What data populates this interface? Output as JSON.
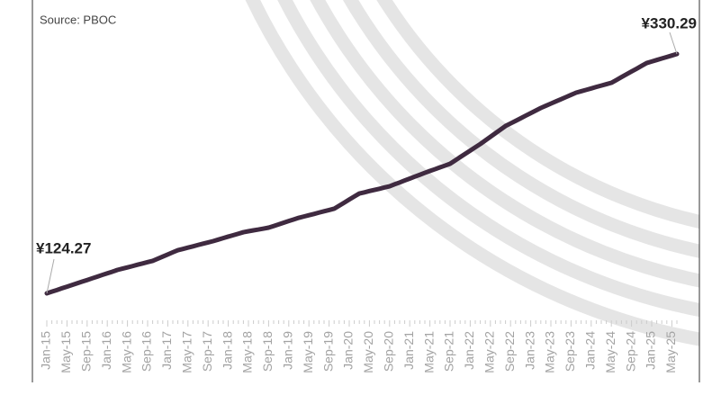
{
  "chart_data": {
    "type": "line",
    "source": "Source: PBOC",
    "categories": [
      "Jan-15",
      null,
      null,
      null,
      "May-15",
      null,
      null,
      null,
      "Sep-15",
      null,
      null,
      null,
      "Jan-16",
      null,
      null,
      null,
      "May-16",
      null,
      null,
      null,
      "Sep-16",
      null,
      null,
      null,
      "Jan-17",
      null,
      null,
      null,
      "May-17",
      null,
      null,
      null,
      "Sep-17",
      null,
      null,
      null,
      "Jan-18",
      null,
      null,
      null,
      "May-18",
      null,
      null,
      null,
      "Sep-18",
      null,
      null,
      null,
      "Jan-19",
      null,
      null,
      null,
      "May-19",
      null,
      null,
      null,
      "Sep-19",
      null,
      null,
      null,
      "Jan-20",
      null,
      null,
      null,
      "May-20",
      null,
      null,
      null,
      "Sep-20",
      null,
      null,
      null,
      "Jan-21",
      null,
      null,
      null,
      "May-21",
      null,
      null,
      null,
      "Sep-21",
      null,
      null,
      null,
      "Jan-22",
      null,
      null,
      null,
      "May-22",
      null,
      null,
      null,
      "Sep-22",
      null,
      null,
      null,
      "Jan-23",
      null,
      null,
      null,
      "May-23",
      null,
      null,
      null,
      "Sep-23",
      null,
      null,
      null,
      "Jan-24",
      null,
      null,
      null,
      "May-24",
      null,
      null,
      null,
      "Sep-24",
      null,
      null,
      null,
      "Jan-25",
      null,
      null,
      null,
      "May-25",
      null
    ],
    "series": [
      {
        "color": "#3f2a40",
        "values": [
          124.27,
          125.7,
          127.1,
          128.6,
          130.0,
          131.4,
          132.9,
          134.3,
          135.7,
          137.2,
          138.6,
          140.1,
          141.5,
          142.9,
          144.4,
          145.5,
          146.6,
          147.7,
          148.9,
          150.0,
          151.1,
          152.2,
          154.0,
          155.9,
          157.7,
          159.6,
          161.4,
          162.5,
          163.6,
          164.7,
          165.9,
          167.0,
          168.1,
          169.2,
          170.5,
          171.8,
          173.1,
          174.3,
          175.6,
          176.9,
          177.7,
          178.5,
          179.2,
          180.0,
          180.8,
          182.2,
          183.6,
          185.1,
          186.5,
          187.9,
          189.3,
          190.4,
          191.5,
          192.6,
          193.8,
          194.9,
          196.0,
          197.1,
          199.7,
          202.3,
          205.0,
          207.6,
          210.2,
          211.2,
          212.3,
          213.3,
          214.3,
          215.4,
          216.4,
          218.1,
          219.7,
          221.4,
          223.0,
          224.7,
          226.3,
          228.0,
          229.6,
          231.1,
          232.7,
          234.2,
          235.8,
          238.6,
          241.5,
          244.3,
          247.1,
          250.0,
          252.8,
          255.9,
          259.0,
          262.1,
          265.2,
          268.3,
          270.5,
          272.7,
          274.9,
          277.2,
          279.4,
          281.6,
          283.8,
          285.7,
          287.6,
          289.5,
          291.3,
          293.2,
          295.1,
          297.0,
          298.2,
          299.4,
          300.6,
          301.9,
          303.1,
          304.3,
          305.5,
          307.9,
          310.4,
          312.8,
          315.2,
          317.6,
          320.1,
          322.5,
          323.8,
          325.1,
          326.4,
          327.7,
          329.0,
          330.29
        ],
        "value_labels": [
          "¥124.27",
          null,
          null,
          null,
          null,
          null,
          null,
          null,
          null,
          null,
          null,
          null,
          null,
          null,
          null,
          null,
          null,
          null,
          null,
          null,
          null,
          null,
          null,
          null,
          null,
          null,
          null,
          null,
          null,
          null,
          null,
          null,
          null,
          null,
          null,
          null,
          null,
          null,
          null,
          null,
          null,
          null,
          null,
          null,
          null,
          null,
          null,
          null,
          null,
          null,
          null,
          null,
          null,
          null,
          null,
          null,
          null,
          null,
          null,
          null,
          null,
          null,
          null,
          null,
          null,
          null,
          null,
          null,
          null,
          null,
          null,
          null,
          null,
          null,
          null,
          null,
          null,
          null,
          null,
          null,
          null,
          null,
          null,
          null,
          null,
          null,
          null,
          null,
          null,
          null,
          null,
          null,
          null,
          null,
          null,
          null,
          null,
          null,
          null,
          null,
          null,
          null,
          null,
          null,
          null,
          null,
          null,
          null,
          null,
          null,
          null,
          null,
          null,
          null,
          null,
          null,
          null,
          null,
          null,
          null,
          null,
          null,
          null,
          null,
          null,
          "¥330.29"
        ]
      }
    ]
  }
}
